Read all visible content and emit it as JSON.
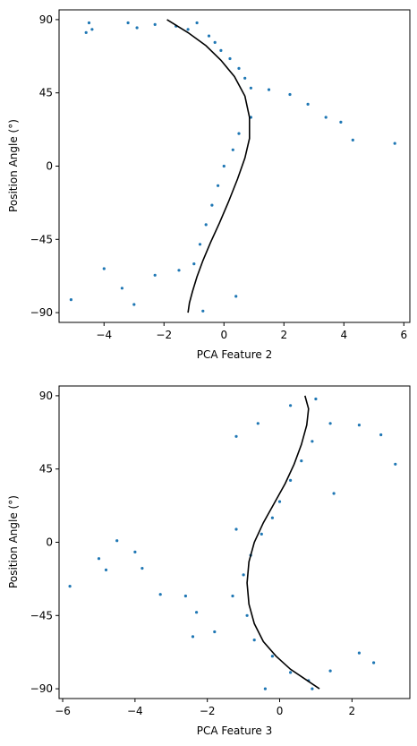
{
  "chart_data": [
    {
      "type": "scatter",
      "xlabel": "PCA Feature 2",
      "ylabel": "Position Angle (°)",
      "xlim": [
        -5.5,
        6.2
      ],
      "ylim": [
        -96,
        96
      ],
      "xticks": [
        -4,
        -2,
        0,
        2,
        4,
        6
      ],
      "xtick_labels": [
        "−4",
        "−2",
        "0",
        "2",
        "4",
        "6"
      ],
      "yticks": [
        -90,
        -45,
        0,
        45,
        90
      ],
      "ytick_labels": [
        "−90",
        "−45",
        "0",
        "45",
        "90"
      ],
      "point_color": "#1f77b4",
      "curve_color": "#000000",
      "scatter_sample": [
        {
          "x": -4.5,
          "y": 88
        },
        {
          "x": -4.4,
          "y": 84
        },
        {
          "x": -4.6,
          "y": 82
        },
        {
          "x": -3.2,
          "y": 88
        },
        {
          "x": -2.9,
          "y": 85
        },
        {
          "x": -2.3,
          "y": 87
        },
        {
          "x": -1.6,
          "y": 86
        },
        {
          "x": -1.2,
          "y": 84
        },
        {
          "x": -0.9,
          "y": 88
        },
        {
          "x": -0.5,
          "y": 80
        },
        {
          "x": -0.3,
          "y": 76
        },
        {
          "x": -0.1,
          "y": 71
        },
        {
          "x": 0.2,
          "y": 66
        },
        {
          "x": 0.5,
          "y": 60
        },
        {
          "x": 0.7,
          "y": 54
        },
        {
          "x": 0.9,
          "y": 48
        },
        {
          "x": 1.5,
          "y": 47
        },
        {
          "x": 2.2,
          "y": 44
        },
        {
          "x": 2.8,
          "y": 38
        },
        {
          "x": 3.4,
          "y": 30
        },
        {
          "x": 3.9,
          "y": 27
        },
        {
          "x": 4.3,
          "y": 16
        },
        {
          "x": 5.7,
          "y": 14
        },
        {
          "x": 0.9,
          "y": 30
        },
        {
          "x": 0.5,
          "y": 20
        },
        {
          "x": 0.3,
          "y": 10
        },
        {
          "x": 0.0,
          "y": 0
        },
        {
          "x": -0.2,
          "y": -12
        },
        {
          "x": -0.4,
          "y": -24
        },
        {
          "x": -0.6,
          "y": -36
        },
        {
          "x": -0.8,
          "y": -48
        },
        {
          "x": -1.0,
          "y": -60
        },
        {
          "x": -1.5,
          "y": -64
        },
        {
          "x": -2.3,
          "y": -67
        },
        {
          "x": -3.4,
          "y": -75
        },
        {
          "x": -3.0,
          "y": -85
        },
        {
          "x": -5.1,
          "y": -82
        },
        {
          "x": -4.0,
          "y": -63
        },
        {
          "x": -0.7,
          "y": -89
        },
        {
          "x": 0.4,
          "y": -80
        }
      ],
      "fit_curve": {
        "x": [
          -1.9,
          -1.2,
          -0.6,
          -0.1,
          0.35,
          0.7,
          0.85,
          0.85,
          0.7,
          0.45,
          0.15,
          -0.15,
          -0.45,
          -0.7,
          -0.9,
          -1.05,
          -1.15,
          -1.2
        ],
        "y": [
          90,
          82,
          74,
          65,
          55,
          43,
          30,
          17,
          5,
          -8,
          -22,
          -35,
          -47,
          -58,
          -68,
          -77,
          -84,
          -90
        ]
      }
    },
    {
      "type": "scatter",
      "xlabel": "PCA Feature 3",
      "ylabel": "Position Angle (°)",
      "xlim": [
        -6.1,
        3.6
      ],
      "ylim": [
        -96,
        96
      ],
      "xticks": [
        -6,
        -4,
        -2,
        0,
        2
      ],
      "xtick_labels": [
        "−6",
        "−4",
        "−2",
        "0",
        "2"
      ],
      "yticks": [
        -90,
        -45,
        0,
        45,
        90
      ],
      "ytick_labels": [
        "−90",
        "−45",
        "0",
        "45",
        "90"
      ],
      "point_color": "#1f77b4",
      "curve_color": "#000000",
      "scatter_sample": [
        {
          "x": -5.8,
          "y": -27
        },
        {
          "x": -5.0,
          "y": -10
        },
        {
          "x": -4.8,
          "y": -17
        },
        {
          "x": -4.5,
          "y": 1
        },
        {
          "x": -4.0,
          "y": -6
        },
        {
          "x": -3.8,
          "y": -16
        },
        {
          "x": -3.3,
          "y": -32
        },
        {
          "x": -2.6,
          "y": -33
        },
        {
          "x": -2.3,
          "y": -43
        },
        {
          "x": -2.4,
          "y": -58
        },
        {
          "x": -1.8,
          "y": -55
        },
        {
          "x": -1.3,
          "y": -33
        },
        {
          "x": -1.0,
          "y": -20
        },
        {
          "x": -0.8,
          "y": -8
        },
        {
          "x": -0.5,
          "y": 5
        },
        {
          "x": -0.2,
          "y": 15
        },
        {
          "x": 0.0,
          "y": 25
        },
        {
          "x": 0.3,
          "y": 38
        },
        {
          "x": 0.6,
          "y": 50
        },
        {
          "x": 0.9,
          "y": 62
        },
        {
          "x": 1.4,
          "y": 73
        },
        {
          "x": 2.2,
          "y": 72
        },
        {
          "x": 2.8,
          "y": 66
        },
        {
          "x": 3.2,
          "y": 48
        },
        {
          "x": 1.0,
          "y": 88
        },
        {
          "x": 0.3,
          "y": 84
        },
        {
          "x": -0.6,
          "y": 73
        },
        {
          "x": -1.2,
          "y": 65
        },
        {
          "x": -1.2,
          "y": 8
        },
        {
          "x": -0.9,
          "y": -45
        },
        {
          "x": -0.7,
          "y": -60
        },
        {
          "x": -0.2,
          "y": -70
        },
        {
          "x": 0.3,
          "y": -80
        },
        {
          "x": 0.8,
          "y": -85
        },
        {
          "x": 1.4,
          "y": -79
        },
        {
          "x": 2.2,
          "y": -68
        },
        {
          "x": 2.6,
          "y": -74
        },
        {
          "x": -0.4,
          "y": -90
        },
        {
          "x": 0.9,
          "y": -90
        },
        {
          "x": 1.5,
          "y": 30
        }
      ],
      "fit_curve": {
        "x": [
          0.7,
          0.8,
          0.75,
          0.6,
          0.4,
          0.15,
          -0.15,
          -0.45,
          -0.7,
          -0.85,
          -0.9,
          -0.85,
          -0.7,
          -0.45,
          -0.1,
          0.3,
          0.7,
          1.1
        ],
        "y": [
          90,
          82,
          72,
          60,
          48,
          36,
          24,
          12,
          0,
          -12,
          -25,
          -38,
          -50,
          -61,
          -70,
          -78,
          -84,
          -90
        ]
      }
    }
  ]
}
